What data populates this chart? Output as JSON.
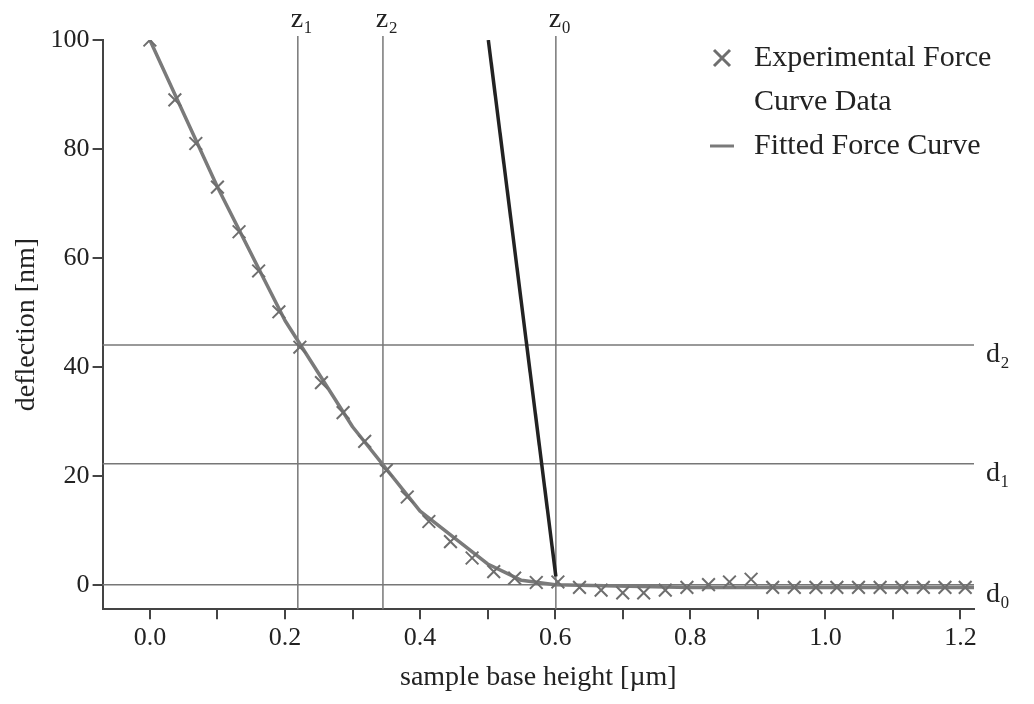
{
  "chart_data": {
    "type": "scatter",
    "xlabel": "sample base height [µm]",
    "ylabel": "deflection [nm]",
    "xlim": [
      -0.07,
      1.22
    ],
    "ylim": [
      -4.5,
      100
    ],
    "xticks": [
      {
        "value": 0,
        "label": "0.0"
      },
      {
        "value": 0.1,
        "label": null
      },
      {
        "value": 0.2,
        "label": "0.2"
      },
      {
        "value": 0.3,
        "label": null
      },
      {
        "value": 0.4,
        "label": "0.4"
      },
      {
        "value": 0.5,
        "label": null
      },
      {
        "value": 0.6,
        "label": "0.6"
      },
      {
        "value": 0.7,
        "label": null
      },
      {
        "value": 0.8,
        "label": "0.8"
      },
      {
        "value": 0.9,
        "label": null
      },
      {
        "value": 1.0,
        "label": "1.0"
      },
      {
        "value": 1.1,
        "label": null
      },
      {
        "value": 1.2,
        "label": "1.2"
      }
    ],
    "yticks": [
      0,
      20,
      40,
      60,
      80,
      100
    ],
    "grid": false,
    "legend": "top right",
    "series": [
      {
        "name": "Experimental Force Curve Data",
        "type": "scatter",
        "marker": "cross",
        "color": "#6e6e6e",
        "x": [
          0,
          0.037,
          0.068,
          0.1,
          0.132,
          0.161,
          0.191,
          0.222,
          0.254,
          0.286,
          0.318,
          0.35,
          0.381,
          0.413,
          0.445,
          0.477,
          0.509,
          0.54,
          0.572,
          0.604,
          0.636,
          0.668,
          0.7,
          0.731,
          0.763,
          0.795,
          0.827,
          0.858,
          0.89,
          0.922,
          0.954,
          0.986,
          1.017,
          1.049,
          1.081,
          1.113,
          1.145,
          1.177,
          1.207
        ],
        "values": [
          100,
          89,
          81,
          73,
          64.8,
          57.6,
          50.1,
          43.6,
          37.1,
          31.6,
          26.3,
          21,
          16.1,
          11.6,
          7.9,
          4.9,
          2.4,
          1.2,
          0.4,
          0.5,
          -0.5,
          -1,
          -1.5,
          -1.5,
          -1,
          -0.5,
          0,
          0.5,
          1,
          -0.5,
          -0.5,
          -0.5,
          -0.5,
          -0.5,
          -0.5,
          -0.5,
          -0.5,
          -0.5,
          -0.5
        ]
      },
      {
        "name": "Fitted Force Curve",
        "type": "line",
        "marker": "none",
        "color": "#7a7a7a",
        "x": [
          0,
          0.1,
          0.2,
          0.3,
          0.4,
          0.5,
          0.55,
          0.6,
          0.8,
          1.0,
          1.22
        ],
        "values": [
          100,
          73,
          48.5,
          29,
          13.5,
          3.8,
          0.8,
          0,
          -0.5,
          -0.5,
          -0.5
        ]
      },
      {
        "type": "line",
        "marker": "none",
        "color": "#222222",
        "x": [
          0.501,
          0.601
        ],
        "values": [
          100,
          1.5
        ]
      }
    ],
    "ref_lines": [
      {
        "axis": "x",
        "value": 0.219,
        "label": "z₁"
      },
      {
        "axis": "x",
        "value": 0.345,
        "label": "z₂"
      },
      {
        "axis": "x",
        "value": 0.601,
        "label": "z₀"
      },
      {
        "axis": "y",
        "value": 44,
        "label": "d₂"
      },
      {
        "axis": "y",
        "value": 22.2,
        "label": "d₁"
      },
      {
        "axis": "y",
        "value": 0,
        "label": "d₀"
      }
    ]
  }
}
